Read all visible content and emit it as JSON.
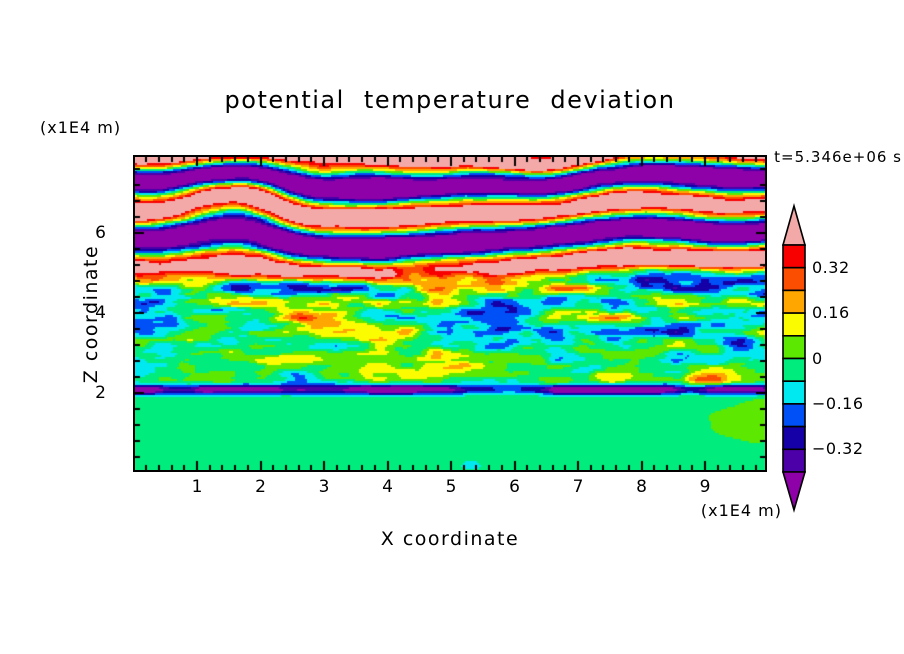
{
  "figure": {
    "title": "potential temperature deviation",
    "time_annotation": "t=5.346e+06 s",
    "z_axis_unit": "(x1E4 m)",
    "x_axis_unit": "(x1E4 m)",
    "x_axis_label": "X coordinate",
    "z_axis_label": "Z coordinate"
  },
  "chart_data": {
    "type": "filled_contour",
    "title": "potential temperature deviation",
    "xlabel": "X coordinate",
    "ylabel": "Z coordinate",
    "x_unit": "(x1E4 m)",
    "y_unit": "(x1E4 m)",
    "time_annotation": "t=5.346e+06 s",
    "x_ticks": [
      1,
      2,
      3,
      4,
      5,
      6,
      7,
      8,
      9
    ],
    "y_ticks": [
      2,
      4,
      6
    ],
    "x_minor_tick_step": 0.2,
    "y_minor_tick_step": 0.4,
    "x_range": [
      0.02,
      9.94
    ],
    "y_range": [
      0.08,
      7.9
    ],
    "grid": false,
    "contour_interval": 0.08,
    "colorbar": {
      "orientation": "vertical",
      "position": "right",
      "labeled_levels": [
        0.32,
        0.16,
        0,
        -0.16,
        -0.32
      ],
      "labeled_levels_display": [
        "0.32",
        "0.16",
        "0",
        "-0.16",
        "-0.32"
      ],
      "level_bounds": [
        -0.4,
        -0.32,
        -0.24,
        -0.16,
        -0.08,
        0,
        0.08,
        0.16,
        0.24,
        0.32,
        0.4
      ],
      "palette_ascending": [
        "#8E00A8",
        "#4B00A8",
        "#1400A6",
        "#0050F8",
        "#00E8F0",
        "#00EC7C",
        "#5CE800",
        "#FCFC00",
        "#FFA600",
        "#FC4E00",
        "#F80000",
        "#F4A9A9"
      ],
      "palette_names_ascending": [
        "purple",
        "violet",
        "navy",
        "blue",
        "cyan",
        "spring-green",
        "chartreuse",
        "yellow",
        "orange",
        "orange-red",
        "red",
        "pink"
      ],
      "arrow_caps": true
    },
    "field_regions": [
      {
        "z_range": [
          0,
          2
        ],
        "description": "quiescent lower layer: values within +/-0.08, spring-green background with chartreuse blobs"
      },
      {
        "z_range": [
          2,
          4.8
        ],
        "description": "turbulent layer: fine horizontally-elongated streaks spanning the full value range, amplitude growing with height; sharp dark interface line at z=2"
      },
      {
        "z_range": [
          4.8,
          7.9
        ],
        "description": "large-amplitude wave layer: alternating horizontal bands beyond +/-0.40 (pink and purple) with thin rainbow fringes"
      }
    ]
  },
  "colors": {
    "background": "#FFFFFF",
    "axis": "#000000",
    "text": "#000000"
  }
}
